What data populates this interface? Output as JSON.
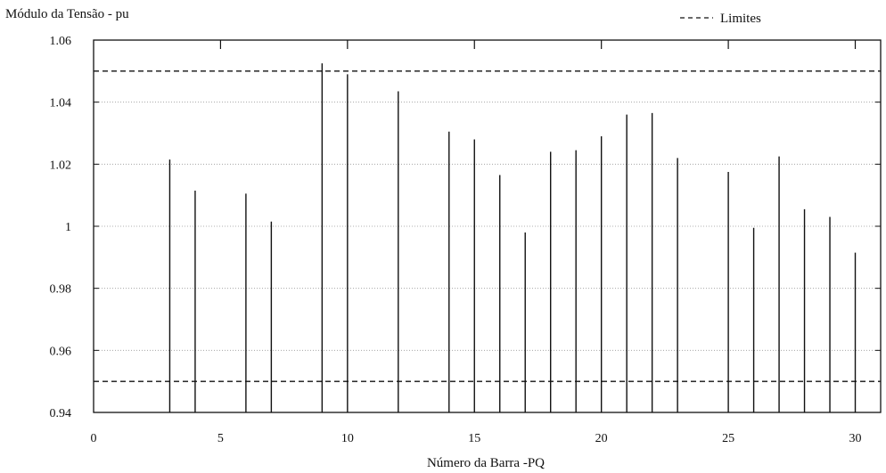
{
  "chart_data": {
    "type": "bar",
    "title": "",
    "ylabel": "Módulo da Tensão - pu",
    "xlabel": "Número da Barra -PQ",
    "xlim": [
      0,
      31
    ],
    "ylim": [
      0.94,
      1.06
    ],
    "x_ticks": [
      0,
      5,
      10,
      15,
      20,
      25,
      30
    ],
    "y_ticks": [
      {
        "value": 0.94,
        "label": "0.94"
      },
      {
        "value": 0.96,
        "label": "0.96"
      },
      {
        "value": 0.98,
        "label": "0.98"
      },
      {
        "value": 1.0,
        "label": "1"
      },
      {
        "value": 1.02,
        "label": "1.02"
      },
      {
        "value": 1.04,
        "label": "1.04"
      },
      {
        "value": 1.06,
        "label": "1.06"
      }
    ],
    "grid": "horizontal dotted",
    "legend": {
      "label": "Limites",
      "placement": "top-right",
      "style": "dashed"
    },
    "limits": [
      0.95,
      1.05
    ],
    "series": [
      {
        "x": [
          3,
          4,
          6,
          7,
          9,
          10,
          12,
          14,
          15,
          16,
          17,
          18,
          19,
          20,
          21,
          22,
          23,
          25,
          26,
          27,
          28,
          29,
          30
        ],
        "values": [
          1.0215,
          1.0115,
          1.0105,
          1.0015,
          1.0525,
          1.049,
          1.0435,
          1.0305,
          1.028,
          1.0165,
          0.998,
          1.024,
          1.0245,
          1.029,
          1.036,
          1.0365,
          1.022,
          1.0175,
          0.9995,
          1.0225,
          1.0055,
          1.003,
          0.9915
        ]
      }
    ],
    "colors": {
      "bars": "#111111",
      "limits": "#111111",
      "grid": "#999999"
    }
  }
}
